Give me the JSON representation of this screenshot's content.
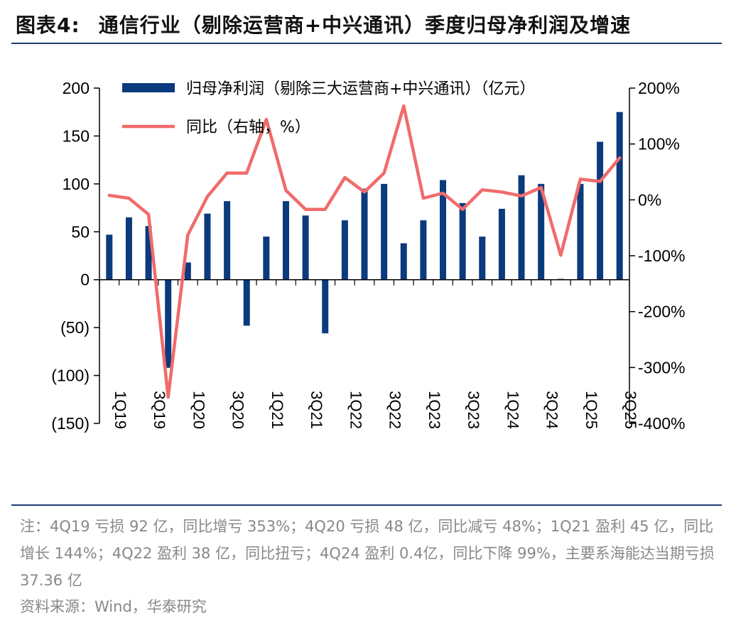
{
  "header": {
    "label": "图表4:",
    "title": "通信行业（剔除运营商+中兴通讯）季度归母净利润及增速"
  },
  "chart_data": {
    "type": "bar+line",
    "categories": [
      "1Q19",
      "2Q19",
      "3Q19",
      "4Q19",
      "1Q20",
      "2Q20",
      "3Q20",
      "4Q20",
      "1Q21",
      "2Q21",
      "3Q21",
      "4Q21",
      "1Q22",
      "2Q22",
      "3Q22",
      "4Q22",
      "1Q23",
      "2Q23",
      "3Q23",
      "4Q23",
      "1Q24",
      "2Q24",
      "3Q24",
      "4Q24",
      "1Q25",
      "2Q25",
      "3Q25"
    ],
    "x_tick_labels": [
      "1Q19",
      "3Q19",
      "1Q20",
      "3Q20",
      "1Q21",
      "3Q21",
      "1Q22",
      "3Q22",
      "1Q23",
      "3Q23",
      "1Q24",
      "3Q24",
      "1Q25",
      "3Q25"
    ],
    "series": [
      {
        "name": "归母净利润（剔除三大运营商+中兴通讯）（亿元）",
        "type": "bar",
        "axis": "left",
        "color": "#0b3a7d",
        "values": [
          47,
          65,
          56,
          -92,
          18,
          69,
          82,
          -48,
          45,
          82,
          67,
          -56,
          62,
          95,
          100,
          38,
          62,
          104,
          80,
          45,
          74,
          109,
          100,
          0.4,
          100,
          144,
          175
        ]
      },
      {
        "name": "同比（右轴，%）",
        "type": "line",
        "axis": "right",
        "color": "#f06b6b",
        "values": [
          8,
          3,
          -26,
          -353,
          -63,
          6,
          48,
          48,
          144,
          17,
          -17,
          -17,
          40,
          14,
          48,
          168,
          3,
          12,
          -17,
          18,
          14,
          7,
          22,
          -99,
          37,
          33,
          75
        ]
      }
    ],
    "y_left": {
      "range": [
        -150,
        200
      ],
      "ticks": [
        200,
        150,
        100,
        50,
        0,
        -50,
        -100,
        -150
      ],
      "tick_labels": [
        "200",
        "150",
        "100",
        "50",
        "0",
        "(50)",
        "(100)",
        "(150)"
      ]
    },
    "y_right": {
      "range": [
        -400,
        200
      ],
      "ticks": [
        200,
        100,
        0,
        -100,
        -200,
        -300,
        -400
      ],
      "tick_labels": [
        "200%",
        "100%",
        "0%",
        "-100%",
        "-200%",
        "-300%",
        "-400%"
      ]
    },
    "legend_position": "top-left",
    "grid": false
  },
  "footer": {
    "note": "注：4Q19 亏损 92 亿，同比增亏 353%；4Q20 亏损 48 亿，同比减亏 48%；1Q21 盈利 45 亿，同比增长 144%；4Q22 盈利 38 亿，同比扭亏；4Q24 盈利 0.4亿，同比下降 99%，主要系海能达当期亏损37.36 亿",
    "source": "资料来源：Wind，华泰研究"
  }
}
